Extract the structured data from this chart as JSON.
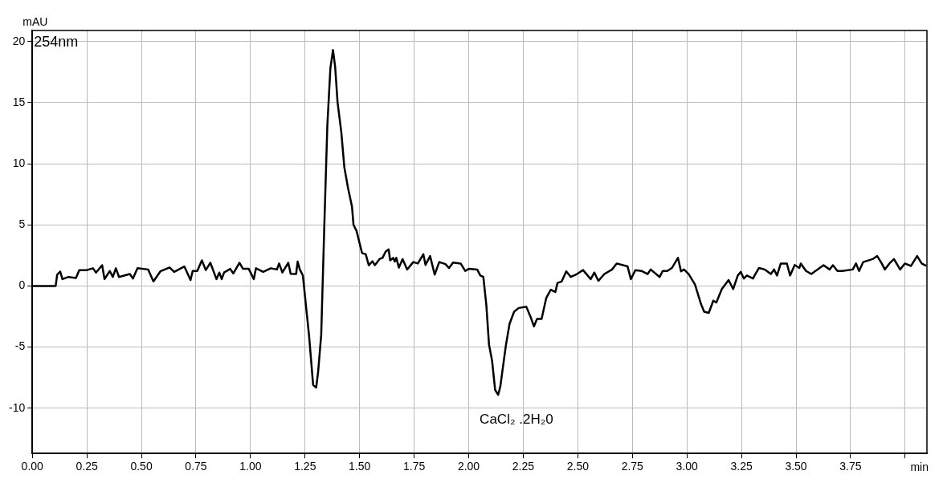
{
  "chart_data": {
    "type": "line",
    "xlabel": "min",
    "ylabel": "mAU",
    "annotations": [
      "254nm",
      "CaCl₂ .2H₂0"
    ],
    "x": [
      0,
      0.107,
      0.114,
      0.128,
      0.138,
      0.166,
      0.2,
      0.215,
      0.25,
      0.278,
      0.292,
      0.32,
      0.331,
      0.355,
      0.369,
      0.383,
      0.397,
      0.447,
      0.461,
      0.482,
      0.531,
      0.555,
      0.587,
      0.629,
      0.65,
      0.697,
      0.725,
      0.735,
      0.756,
      0.777,
      0.795,
      0.816,
      0.844,
      0.857,
      0.868,
      0.879,
      0.907,
      0.921,
      0.949,
      0.966,
      0.992,
      1.015,
      1.025,
      1.058,
      1.093,
      1.121,
      1.131,
      1.146,
      1.173,
      1.184,
      1.209,
      1.216,
      1.226,
      1.24,
      1.254,
      1.268,
      1.287,
      1.301,
      1.31,
      1.324,
      1.338,
      1.352,
      1.366,
      1.378,
      1.388,
      1.399,
      1.416,
      1.43,
      1.447,
      1.465,
      1.472,
      1.486,
      1.511,
      1.528,
      1.542,
      1.559,
      1.57,
      1.591,
      1.605,
      1.619,
      1.633,
      1.64,
      1.654,
      1.661,
      1.668,
      1.68,
      1.697,
      1.718,
      1.746,
      1.767,
      1.792,
      1.802,
      1.823,
      1.844,
      1.865,
      1.893,
      1.91,
      1.928,
      1.963,
      1.984,
      2.0,
      2.039,
      2.053,
      2.067,
      2.081,
      2.093,
      2.107,
      2.121,
      2.135,
      2.145,
      2.17,
      2.187,
      2.208,
      2.229,
      2.264,
      2.285,
      2.299,
      2.313,
      2.334,
      2.355,
      2.376,
      2.397,
      2.407,
      2.426,
      2.447,
      2.468,
      2.496,
      2.524,
      2.559,
      2.576,
      2.594,
      2.622,
      2.657,
      2.678,
      2.728,
      2.743,
      2.764,
      2.792,
      2.82,
      2.834,
      2.875,
      2.889,
      2.91,
      2.931,
      2.959,
      2.973,
      2.987,
      3.008,
      3.037,
      3.065,
      3.079,
      3.1,
      3.121,
      3.135,
      3.16,
      3.191,
      3.212,
      3.233,
      3.247,
      3.261,
      3.275,
      3.303,
      3.31,
      3.33,
      3.357,
      3.385,
      3.399,
      3.413,
      3.43,
      3.458,
      3.473,
      3.494,
      3.515,
      3.522,
      3.546,
      3.57,
      3.626,
      3.654,
      3.669,
      3.69,
      3.711,
      3.76,
      3.775,
      3.789,
      3.808,
      3.851,
      3.872,
      3.893,
      3.907,
      3.928,
      3.949,
      3.977,
      3.999,
      4.027,
      4.055,
      4.076,
      4.097
    ],
    "series": [
      {
        "color": "#000000",
        "values": [
          0,
          0,
          0.93,
          1.18,
          0.56,
          0.74,
          0.66,
          1.3,
          1.3,
          1.45,
          1.1,
          1.7,
          0.56,
          1.23,
          0.74,
          1.45,
          0.74,
          0.98,
          0.61,
          1.45,
          1.35,
          0.37,
          1.2,
          1.52,
          1.15,
          1.59,
          0.49,
          1.23,
          1.23,
          2.1,
          1.3,
          1.9,
          0.56,
          1.1,
          0.56,
          1.1,
          1.4,
          1.03,
          1.9,
          1.4,
          1.4,
          0.56,
          1.45,
          1.15,
          1.45,
          1.35,
          1.84,
          1.1,
          1.9,
          1.0,
          0.98,
          2.0,
          1.35,
          0.86,
          -1.6,
          -4.0,
          -8.1,
          -8.3,
          -7.0,
          -4.0,
          4.8,
          13.1,
          17.8,
          19.3,
          17.9,
          15.0,
          12.6,
          9.7,
          8.0,
          6.5,
          5.0,
          4.5,
          2.7,
          2.6,
          1.7,
          2.03,
          1.7,
          2.2,
          2.3,
          2.8,
          3.0,
          2.1,
          2.3,
          2.0,
          2.3,
          1.5,
          2.2,
          1.35,
          1.96,
          1.84,
          2.6,
          1.72,
          2.45,
          0.93,
          1.96,
          1.79,
          1.47,
          1.91,
          1.84,
          1.23,
          1.4,
          1.35,
          0.86,
          0.74,
          -1.6,
          -4.8,
          -6.1,
          -8.5,
          -8.9,
          -8.2,
          -4.9,
          -3.1,
          -2.1,
          -1.8,
          -1.7,
          -2.6,
          -3.3,
          -2.7,
          -2.7,
          -1.0,
          -0.3,
          -0.49,
          0.25,
          0.37,
          1.2,
          0.74,
          0.98,
          1.3,
          0.56,
          1.1,
          0.42,
          0.98,
          1.35,
          1.84,
          1.6,
          0.56,
          1.3,
          1.23,
          0.98,
          1.35,
          0.74,
          1.23,
          1.23,
          1.47,
          2.3,
          1.2,
          1.35,
          0.98,
          0.12,
          -1.5,
          -2.1,
          -2.2,
          -1.2,
          -1.35,
          -0.25,
          0.49,
          -0.25,
          0.86,
          1.15,
          0.61,
          0.86,
          0.61,
          0.86,
          1.47,
          1.35,
          0.98,
          1.35,
          0.86,
          1.84,
          1.84,
          0.86,
          1.72,
          1.47,
          1.84,
          1.23,
          0.98,
          1.7,
          1.35,
          1.7,
          1.23,
          1.23,
          1.35,
          1.84,
          1.23,
          1.96,
          2.2,
          2.45,
          1.84,
          1.35,
          1.84,
          2.2,
          1.35,
          1.84,
          1.64,
          2.45,
          1.84,
          1.64
        ]
      }
    ],
    "xlim": [
      0,
      4.1
    ],
    "xticks": [
      {
        "value": 0,
        "label": "0.00"
      },
      {
        "value": 0.25,
        "label": "0.25"
      },
      {
        "value": 0.5,
        "label": "0.50"
      },
      {
        "value": 0.75,
        "label": "0.75"
      },
      {
        "value": 1,
        "label": "1.00"
      },
      {
        "value": 1.25,
        "label": "1.25"
      },
      {
        "value": 1.5,
        "label": "1.50"
      },
      {
        "value": 1.75,
        "label": "1.75"
      },
      {
        "value": 2,
        "label": "2.00"
      },
      {
        "value": 2.25,
        "label": "2.25"
      },
      {
        "value": 2.5,
        "label": "2.50"
      },
      {
        "value": 2.75,
        "label": "2.75"
      },
      {
        "value": 3,
        "label": "3.00"
      },
      {
        "value": 3.25,
        "label": "3.25"
      },
      {
        "value": 3.5,
        "label": "3.50"
      },
      {
        "value": 3.75,
        "label": "3.75"
      },
      {
        "value": 4,
        "label": null
      }
    ],
    "ylim": [
      -13.7,
      20.9
    ],
    "yticks": [
      -10,
      -5,
      0,
      5,
      10,
      15,
      20
    ],
    "grid": true,
    "legend": false,
    "marker": "none",
    "line_style": "solid"
  }
}
